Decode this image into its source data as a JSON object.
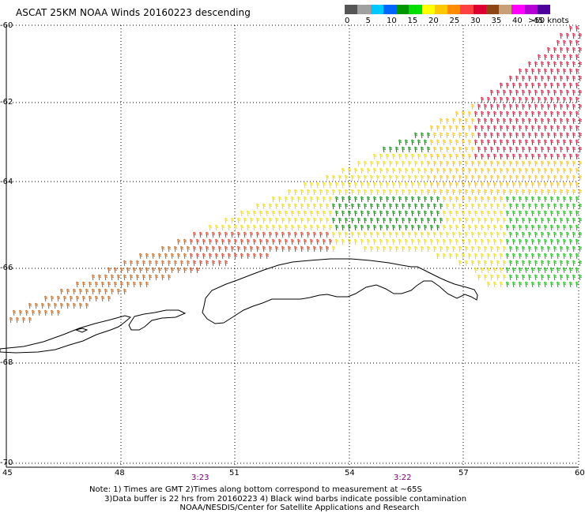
{
  "title": "ASCAT 25KM NOAA Winds 20160223 descending",
  "colorbar": {
    "labels": [
      "0",
      "5",
      "10",
      "15",
      "20",
      "25",
      "30",
      "35",
      "40",
      "45",
      ">50 knots"
    ],
    "colors": [
      "#555555",
      "#a0a0a0",
      "#00c8ff",
      "#0064ff",
      "#009600",
      "#00e000",
      "#ffff00",
      "#ffc800",
      "#ff8c00",
      "#ff4040",
      "#dc0032",
      "#8c4614",
      "#c8a078",
      "#ff00ff",
      "#b400d2",
      "#50009a"
    ]
  },
  "axes": {
    "lat_labels": [
      "-60",
      "-62",
      "-64",
      "-66",
      "-68",
      "-70"
    ],
    "lon_labels": [
      "45",
      "48",
      "51",
      "54",
      "57",
      "60"
    ]
  },
  "times": [
    {
      "label": "3:23"
    },
    {
      "label": "3:22"
    }
  ],
  "notes": {
    "line1": "Note: 1) Times are GMT 2)Times along bottom correspond to measurement at ~65S",
    "line2": "      3)Data buffer is 22 hrs from 20160223 4) Black wind barbs indicate possible contamination",
    "line3": "                                    NOAA/NESDIS/Center for Satellite Applications and Research"
  },
  "icons": {
    "wind-barbs": "wind-barb-glyphs",
    "coastline": "antarctic-coastline"
  }
}
